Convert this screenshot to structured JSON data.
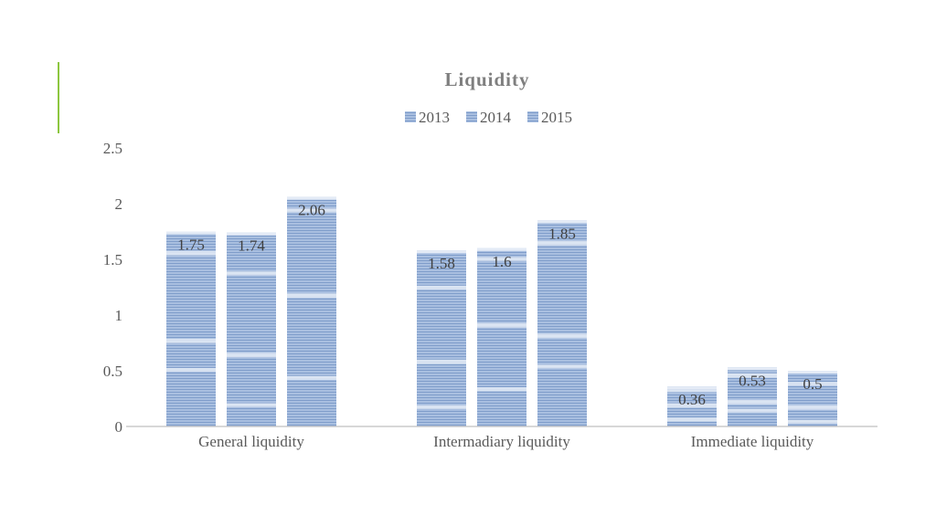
{
  "colors": {
    "bar": "#9db4d8",
    "bar_stripe": "#7f9dca",
    "band": "#e8eef7",
    "axis": "#bfbfbf",
    "accent": "#8cc63f"
  },
  "chart_data": {
    "type": "bar",
    "title": "Liquidity",
    "categories": [
      "General liquidity",
      "Intermadiary liquidity",
      "Immediate liquidity"
    ],
    "series": [
      {
        "name": "2013",
        "values": [
          1.75,
          1.58,
          0.36
        ]
      },
      {
        "name": "2014",
        "values": [
          1.74,
          1.6,
          0.53
        ]
      },
      {
        "name": "2015",
        "values": [
          2.06,
          1.85,
          0.5
        ]
      }
    ],
    "data_labels": [
      [
        "1.75",
        "1.58",
        "0.36"
      ],
      [
        "1.74",
        "1.6",
        "0.53"
      ],
      [
        "2.06",
        "1.85",
        "0.5"
      ]
    ],
    "y_ticks": [
      "0",
      "0.5",
      "1",
      "1.5",
      "2",
      "2.5"
    ],
    "ylim": [
      0,
      2.5
    ],
    "grid": false,
    "legend_position": "top"
  }
}
